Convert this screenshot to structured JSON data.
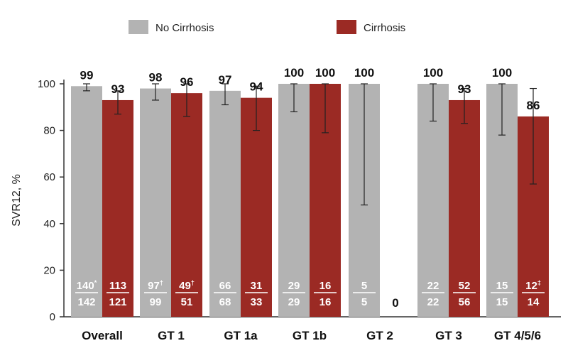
{
  "chart_data": {
    "type": "bar",
    "title": "",
    "xlabel": "",
    "ylabel": "SVR12, %",
    "ylim": [
      0,
      100
    ],
    "yticks": [
      0,
      20,
      40,
      60,
      80,
      100
    ],
    "grid": false,
    "legend_position": "top",
    "categories": [
      "Overall",
      "GT 1",
      "GT 1a",
      "GT 1b",
      "GT 2",
      "GT 3",
      "GT 4/5/6"
    ],
    "series": [
      {
        "name": "No Cirrhosis",
        "color": "#b3b3b3",
        "values": [
          99,
          98,
          97,
          100,
          100,
          100,
          100
        ],
        "labels": [
          "99",
          "98",
          "97",
          "100",
          "100",
          "100",
          "100"
        ],
        "err_low": [
          97,
          93,
          91,
          88,
          48,
          84,
          78
        ],
        "err_high": [
          100,
          100,
          100,
          100,
          100,
          100,
          100
        ],
        "numerators": [
          "140",
          "97",
          "66",
          "29",
          "5",
          "22",
          "15"
        ],
        "numerator_marks": [
          "*",
          "†",
          "",
          "",
          "",
          "",
          ""
        ],
        "denominators": [
          "142",
          "99",
          "68",
          "29",
          "5",
          "22",
          "15"
        ]
      },
      {
        "name": "Cirrhosis",
        "color": "#9b2a24",
        "values": [
          93,
          96,
          94,
          100,
          0,
          93,
          86
        ],
        "labels": [
          "93",
          "96",
          "94",
          "100",
          "0",
          "93",
          "86"
        ],
        "err_low": [
          87,
          86,
          80,
          79,
          null,
          83,
          57
        ],
        "err_high": [
          97,
          100,
          99,
          100,
          null,
          98,
          98
        ],
        "numerators": [
          "113",
          "49",
          "31",
          "16",
          "",
          "52",
          "12"
        ],
        "numerator_marks": [
          "",
          "†",
          "",
          "",
          "",
          "",
          "‡"
        ],
        "denominators": [
          "121",
          "51",
          "33",
          "16",
          "",
          "56",
          "14"
        ]
      }
    ]
  }
}
